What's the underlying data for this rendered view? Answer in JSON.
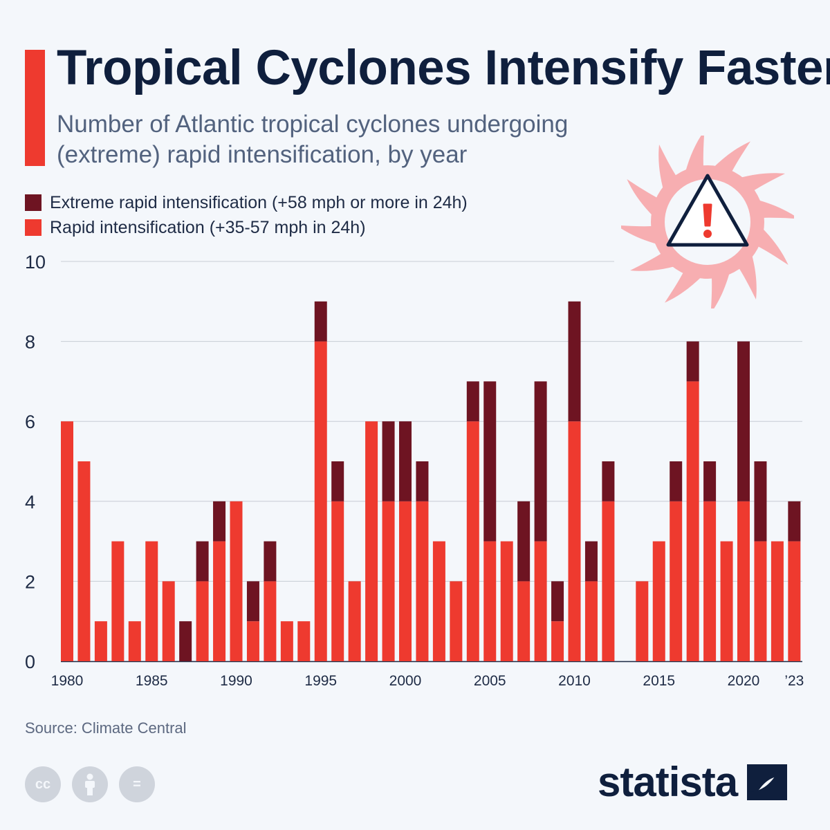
{
  "header": {
    "title": "Tropical Cyclones Intensify Faster",
    "subtitle": "Number of Atlantic tropical cyclones undergoing (extreme) rapid intensification, by year"
  },
  "colors": {
    "accent": "#ee3a2f",
    "rapid": "#ee3a2f",
    "extreme": "#6e1422",
    "grid": "#c7ccd4",
    "axis_text": "#1e2b45",
    "storm": "#f7aeb1"
  },
  "icons": [
    "cyclone-warning-icon",
    "cc-icon",
    "attribution-icon",
    "no-derivatives-icon",
    "statista-logo-icon"
  ],
  "chart_data": {
    "type": "bar",
    "stacked": true,
    "title": "Tropical Cyclones Intensify Faster",
    "subtitle": "Number of Atlantic tropical cyclones undergoing (extreme) rapid intensification, by year",
    "xlabel": "",
    "ylabel": "",
    "ylim": [
      0,
      10
    ],
    "yticks": [
      0,
      2,
      4,
      6,
      8,
      10
    ],
    "categories": [
      1980,
      1981,
      1982,
      1983,
      1984,
      1985,
      1986,
      1987,
      1988,
      1989,
      1990,
      1991,
      1992,
      1993,
      1994,
      1995,
      1996,
      1997,
      1998,
      1999,
      2000,
      2001,
      2002,
      2003,
      2004,
      2005,
      2006,
      2007,
      2008,
      2009,
      2010,
      2011,
      2012,
      2013,
      2014,
      2015,
      2016,
      2017,
      2018,
      2019,
      2020,
      2021,
      2022,
      2023
    ],
    "xtick_labels": [
      {
        "year": 1980,
        "label": "1980"
      },
      {
        "year": 1985,
        "label": "1985"
      },
      {
        "year": 1990,
        "label": "1990"
      },
      {
        "year": 1995,
        "label": "1995"
      },
      {
        "year": 2000,
        "label": "2000"
      },
      {
        "year": 2005,
        "label": "2005"
      },
      {
        "year": 2010,
        "label": "2010"
      },
      {
        "year": 2015,
        "label": "2015"
      },
      {
        "year": 2020,
        "label": "2020"
      },
      {
        "year": 2023,
        "label": "’23"
      }
    ],
    "series": [
      {
        "name": "Rapid intensification (+35-57 mph in 24h)",
        "values": [
          6,
          5,
          1,
          3,
          1,
          3,
          2,
          0,
          2,
          3,
          4,
          1,
          2,
          1,
          1,
          8,
          4,
          2,
          6,
          4,
          4,
          4,
          3,
          2,
          6,
          3,
          3,
          2,
          3,
          1,
          6,
          2,
          4,
          0,
          2,
          3,
          4,
          7,
          4,
          3,
          4,
          3,
          3,
          3
        ]
      },
      {
        "name": "Extreme rapid intensification (+58 mph or more in 24h)",
        "values": [
          0,
          0,
          0,
          0,
          0,
          0,
          0,
          1,
          1,
          1,
          0,
          1,
          1,
          0,
          0,
          1,
          1,
          0,
          0,
          2,
          2,
          1,
          0,
          0,
          1,
          4,
          0,
          2,
          4,
          1,
          3,
          1,
          1,
          0,
          0,
          0,
          1,
          1,
          1,
          0,
          4,
          2,
          0,
          1
        ]
      }
    ],
    "legend": [
      {
        "label": "Extreme rapid intensification (+58 mph or more in 24h)"
      },
      {
        "label": "Rapid intensification (+35‑57 mph in 24h)"
      }
    ],
    "legend_position": "top-left"
  },
  "footer": {
    "source": "Source: Climate Central",
    "cc_label": "cc",
    "nd_label": "=",
    "brand": "statista"
  }
}
